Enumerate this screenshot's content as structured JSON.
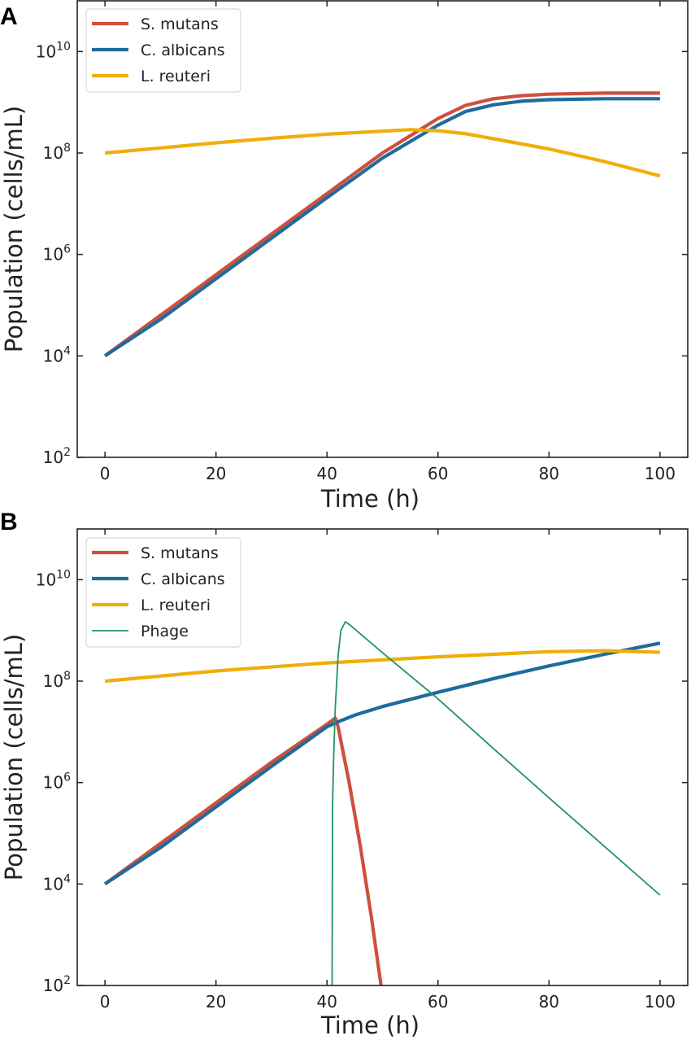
{
  "chart_data": [
    {
      "type": "line",
      "panel_label": "A",
      "xlabel": "Time (h)",
      "ylabel": "Population (cells/mL)",
      "xlim": [
        -5,
        105
      ],
      "ylim": [
        100,
        100000000000
      ],
      "yscale": "log",
      "xticks": [
        0,
        20,
        40,
        60,
        80,
        100
      ],
      "yticks": [
        2,
        4,
        6,
        8,
        10
      ],
      "ytick_base": "10",
      "grid": false,
      "legend_position": "top-left",
      "series": [
        {
          "name": "S. mutans",
          "color": "#cf4f3e",
          "width": "thick",
          "x": [
            0,
            10,
            20,
            30,
            40,
            50,
            60,
            65,
            70,
            75,
            80,
            90,
            100
          ],
          "log10_y": [
            4,
            4.8,
            5.6,
            6.4,
            7.2,
            8.0,
            8.68,
            8.94,
            9.07,
            9.13,
            9.16,
            9.18,
            9.18
          ]
        },
        {
          "name": "C. albicans",
          "color": "#1f6b9c",
          "width": "thick",
          "x": [
            0,
            10,
            20,
            30,
            40,
            50,
            60,
            65,
            70,
            75,
            80,
            90,
            100
          ],
          "log10_y": [
            4,
            4.72,
            5.52,
            6.32,
            7.12,
            7.9,
            8.55,
            8.82,
            8.95,
            9.02,
            9.05,
            9.07,
            9.07
          ]
        },
        {
          "name": "L. reuteri",
          "color": "#f0ae0a",
          "width": "thick",
          "x": [
            0,
            10,
            20,
            30,
            40,
            50,
            55,
            60,
            65,
            70,
            80,
            90,
            100
          ],
          "log10_y": [
            8,
            8.1,
            8.2,
            8.29,
            8.37,
            8.43,
            8.46,
            8.44,
            8.38,
            8.28,
            8.08,
            7.83,
            7.55
          ]
        }
      ]
    },
    {
      "type": "line",
      "panel_label": "B",
      "xlabel": "Time (h)",
      "ylabel": "Population (cells/mL)",
      "xlim": [
        -5,
        105
      ],
      "ylim": [
        100,
        100000000000
      ],
      "yscale": "log",
      "xticks": [
        0,
        20,
        40,
        60,
        80,
        100
      ],
      "yticks": [
        2,
        4,
        6,
        8,
        10
      ],
      "ytick_base": "10",
      "grid": false,
      "legend_position": "top-left",
      "series": [
        {
          "name": "S. mutans",
          "color": "#cf4f3e",
          "width": "thick",
          "x": [
            0,
            10,
            20,
            30,
            40,
            41.5,
            42,
            44,
            46,
            48,
            50
          ],
          "log10_y": [
            4,
            4.8,
            5.6,
            6.4,
            7.15,
            7.27,
            7.1,
            6.0,
            4.75,
            3.35,
            1.8
          ]
        },
        {
          "name": "C. albicans",
          "color": "#1f6b9c",
          "width": "thick",
          "x": [
            0,
            10,
            20,
            30,
            40,
            42,
            45,
            50,
            60,
            70,
            80,
            90,
            100
          ],
          "log10_y": [
            4,
            4.72,
            5.52,
            6.32,
            7.1,
            7.2,
            7.33,
            7.5,
            7.78,
            8.05,
            8.3,
            8.53,
            8.75
          ]
        },
        {
          "name": "L. reuteri",
          "color": "#f0ae0a",
          "width": "thick",
          "x": [
            0,
            20,
            40,
            60,
            80,
            90,
            100
          ],
          "log10_y": [
            8,
            8.2,
            8.36,
            8.48,
            8.58,
            8.6,
            8.57
          ]
        },
        {
          "name": "Phage",
          "color": "#21945f",
          "width": "thin",
          "x": [
            40.9,
            41.0,
            41.05,
            41.2,
            41.5,
            42,
            42.5,
            43.3,
            44,
            50,
            60,
            70,
            80,
            90,
            100
          ],
          "log10_y": [
            1.5,
            5.5,
            5.8,
            6.5,
            7.5,
            8.5,
            9.0,
            9.17,
            9.12,
            8.56,
            7.65,
            6.67,
            5.7,
            4.74,
            3.78
          ]
        }
      ]
    }
  ]
}
